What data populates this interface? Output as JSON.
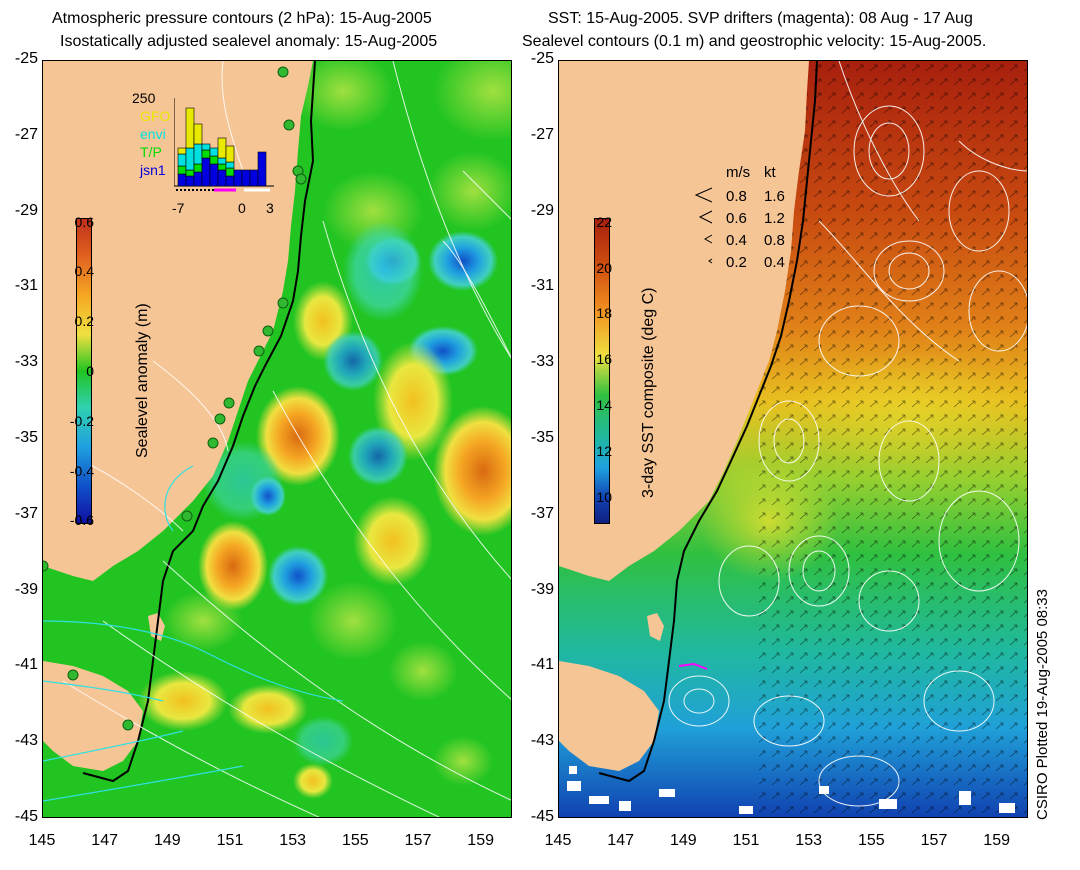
{
  "left_panel": {
    "title_line1": "Atmospheric pressure contours (2 hPa): 15-Aug-2005",
    "title_line2": "Isostatically adjusted sealevel anomaly: 15-Aug-2005",
    "colorbar_title": "Sealevel anomaly (m)",
    "colorbar_ticks": [
      "0.6",
      "0.4",
      "0.2",
      "0",
      "-0.2",
      "-0.4",
      "-0.6"
    ],
    "inset": {
      "top_value": "250",
      "legend": [
        {
          "label": "GFO",
          "color": "#e8e800"
        },
        {
          "label": "envi",
          "color": "#00e0e0"
        },
        {
          "label": "T/P",
          "color": "#00dd00"
        },
        {
          "label": "jsn1",
          "color": "#0000e0"
        }
      ],
      "xticks": [
        "-7",
        "0",
        "3"
      ]
    }
  },
  "right_panel": {
    "title_line1": "SST: 15-Aug-2005. SVP drifters (magenta): 08 Aug - 17 Aug",
    "title_line2": "Sealevel contours (0.1 m) and geostrophic velocity: 15-Aug-2005.",
    "colorbar_title": "3-day SST composite (deg C)",
    "colorbar_ticks": [
      "22",
      "20",
      "18",
      "16",
      "14",
      "12",
      "10"
    ],
    "velocity_legend": {
      "header_ms": "m/s",
      "header_kt": "kt",
      "rows": [
        {
          "ms": "0.8",
          "kt": "1.6"
        },
        {
          "ms": "0.6",
          "kt": "1.2"
        },
        {
          "ms": "0.4",
          "kt": "0.8"
        },
        {
          "ms": "0.2",
          "kt": "0.4"
        }
      ]
    }
  },
  "axes": {
    "y_ticks": [
      "-25",
      "-27",
      "-29",
      "-31",
      "-33",
      "-35",
      "-37",
      "-39",
      "-41",
      "-43",
      "-45"
    ],
    "x_ticks": [
      "145",
      "147",
      "149",
      "151",
      "153",
      "155",
      "157",
      "159"
    ]
  },
  "side_note": "CSIRO Plotted 19-Aug-2005 08:33"
}
